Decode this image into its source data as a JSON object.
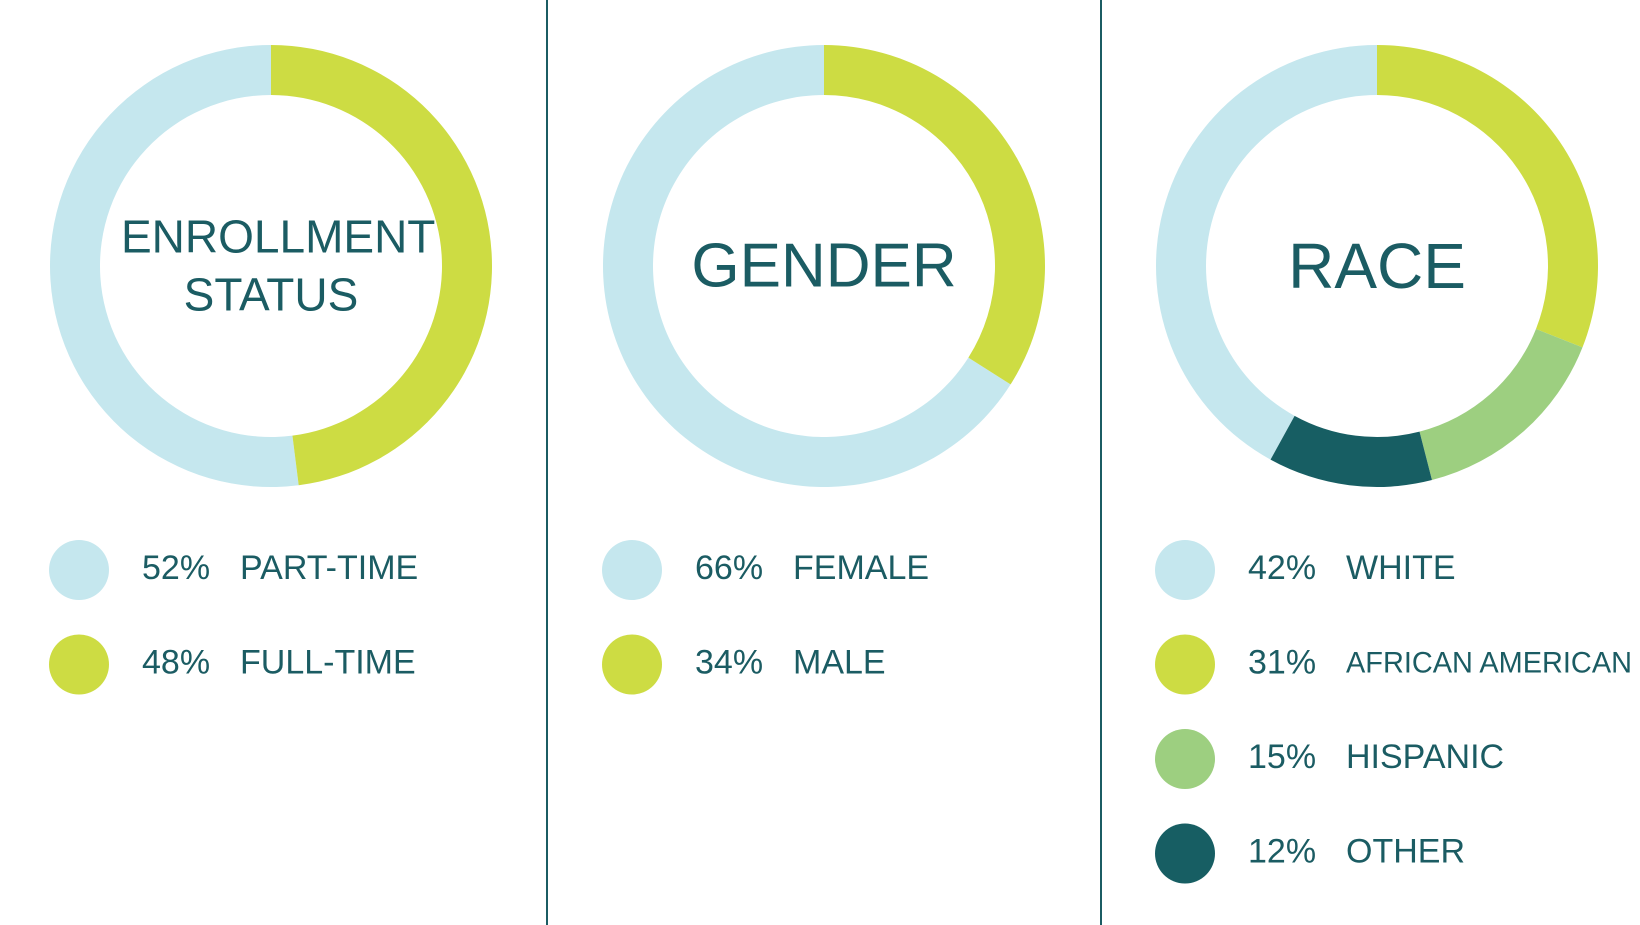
{
  "chart_data": [
    {
      "type": "donut",
      "title": "ENROLLMENT STATUS",
      "categories": [
        "PART-TIME",
        "FULL-TIME"
      ],
      "values": [
        52,
        48
      ],
      "value_labels": [
        "52%",
        "48%"
      ],
      "colors": [
        "#c5e7ee",
        "#cddc43"
      ]
    },
    {
      "type": "donut",
      "title": "GENDER",
      "categories": [
        "FEMALE",
        "MALE"
      ],
      "values": [
        66,
        34
      ],
      "value_labels": [
        "66%",
        "34%"
      ],
      "colors": [
        "#c5e7ee",
        "#cddc43"
      ]
    },
    {
      "type": "donut",
      "title": "RACE",
      "categories": [
        "WHITE",
        "AFRICAN AMERICAN",
        "HISPANIC",
        "OTHER"
      ],
      "values": [
        42,
        31,
        15,
        12
      ],
      "value_labels": [
        "42%",
        "31%",
        "15%",
        "12%"
      ],
      "colors": [
        "#c5e7ee",
        "#cddc43",
        "#9dcf80",
        "#175e63"
      ]
    }
  ]
}
